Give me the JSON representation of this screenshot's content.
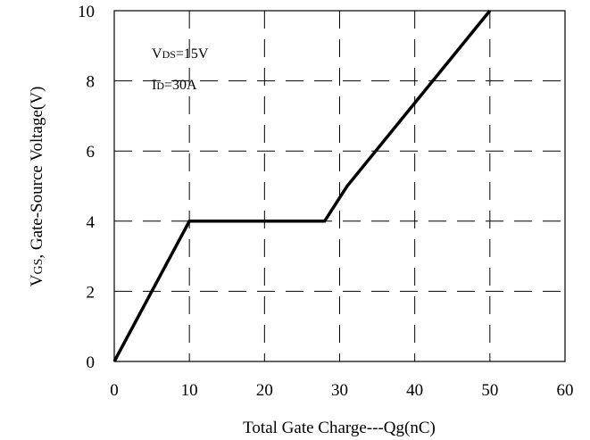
{
  "chart_data": {
    "type": "line",
    "xlabel": "Total Gate Charge---Qg(nC)",
    "ylabel": {
      "prefix": "V",
      "sub": "GS",
      "rest": ", Gate-Source Voltage(V)"
    },
    "xlim": [
      0,
      60
    ],
    "ylim": [
      0,
      10
    ],
    "x_ticks": [
      0,
      10,
      20,
      30,
      40,
      50,
      60
    ],
    "y_ticks": [
      0,
      2,
      4,
      6,
      8,
      10
    ],
    "grid": true,
    "grid_style": "dashed",
    "annotations": [
      {
        "main": "V",
        "sub": "DS",
        "rest": "=15V"
      },
      {
        "main": "I",
        "sub": "D",
        "rest": "=30A"
      }
    ],
    "series": [
      {
        "color": "#000000",
        "x": [
          0,
          10,
          28,
          31,
          50
        ],
        "y": [
          0,
          4,
          4,
          5,
          10
        ]
      }
    ]
  }
}
